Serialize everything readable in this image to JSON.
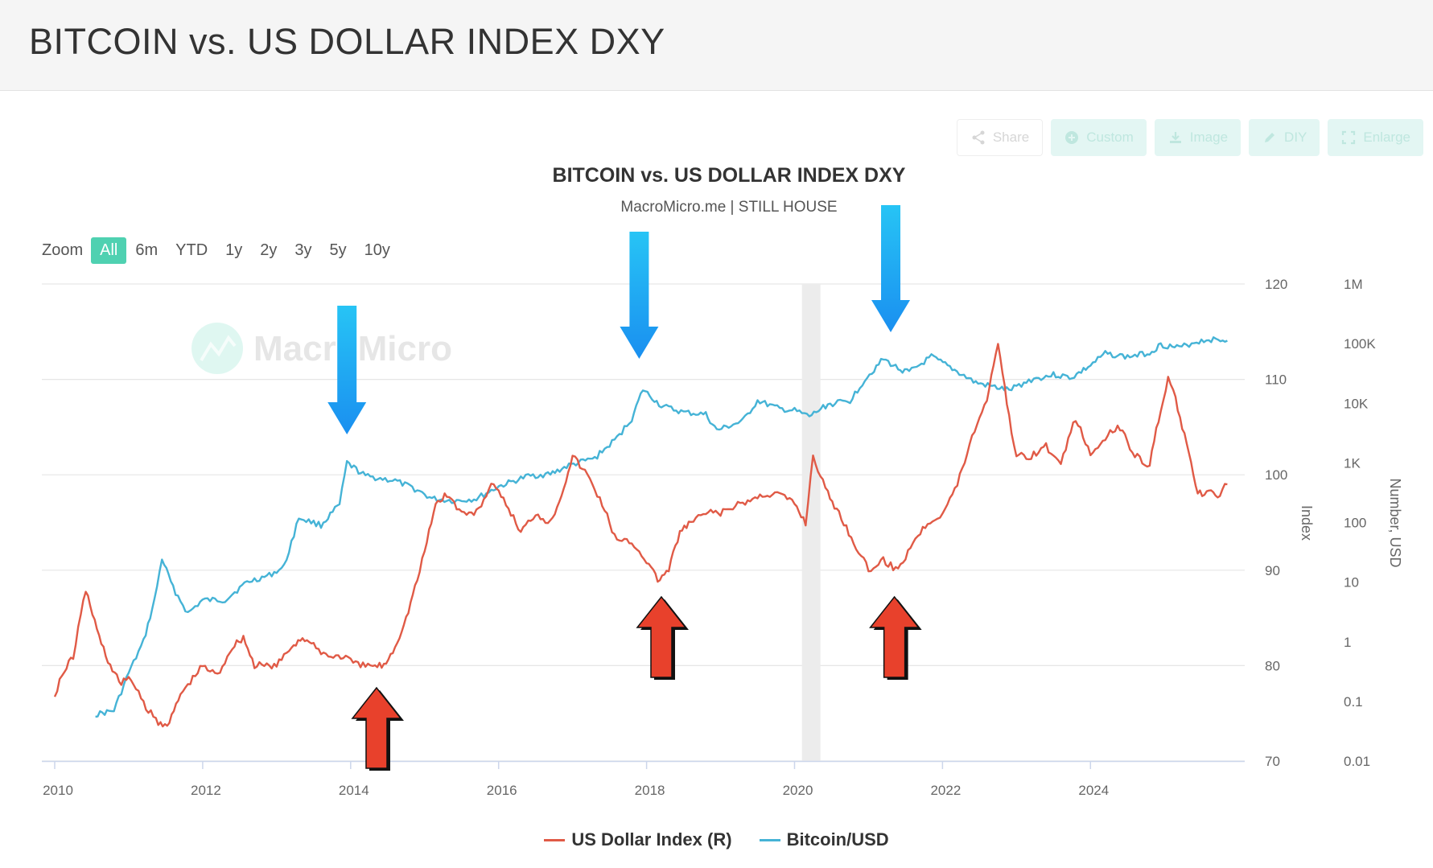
{
  "page": {
    "title": "BITCOIN vs. US DOLLAR INDEX DXY"
  },
  "toolbar": [
    {
      "id": "share",
      "label": "Share",
      "icon": "share-icon"
    },
    {
      "id": "custom",
      "label": "Custom",
      "icon": "plus-circle-icon"
    },
    {
      "id": "image",
      "label": "Image",
      "icon": "download-icon"
    },
    {
      "id": "diy",
      "label": "DIY",
      "icon": "pencil-icon"
    },
    {
      "id": "enlarge",
      "label": "Enlarge",
      "icon": "expand-icon"
    }
  ],
  "zoom": {
    "label": "Zoom",
    "options": [
      "All",
      "6m",
      "YTD",
      "1y",
      "2y",
      "3y",
      "5y",
      "10y"
    ],
    "selected": "All"
  },
  "watermark": "MacroMicro",
  "colors": {
    "dxy": "#e05a46",
    "btc": "#45b3d6",
    "accent": "#4fd1b1",
    "arrow_blue": "#1a8ff0",
    "arrow_red": "#e8412c",
    "grid": "#e6e6e6"
  },
  "chart_data": {
    "type": "line",
    "title": "BITCOIN vs. US DOLLAR INDEX DXY",
    "subtitle": "MacroMicro.me | STILL HOUSE",
    "xlabel": "",
    "x_ticks": [
      "2010",
      "2012",
      "2014",
      "2016",
      "2018",
      "2020",
      "2022",
      "2024"
    ],
    "xlim": [
      2010,
      2025.9
    ],
    "y_axes": [
      {
        "label": "Index",
        "ticks": [
          "70",
          "80",
          "90",
          "100",
          "110",
          "120"
        ],
        "ylim": [
          70,
          120
        ],
        "scale": "linear"
      },
      {
        "label": "Number, USD",
        "ticks": [
          "0.01",
          "0.1",
          "1",
          "10",
          "100",
          "1K",
          "10K",
          "100K",
          "1M"
        ],
        "ylim": [
          0.01,
          1000000
        ],
        "scale": "log"
      }
    ],
    "shaded_region": {
      "x": [
        2020.1,
        2020.35
      ]
    },
    "series": [
      {
        "name": "US Dollar Index (R)",
        "axis": 0,
        "points": [
          [
            2010.0,
            77
          ],
          [
            2010.1,
            79
          ],
          [
            2010.25,
            81
          ],
          [
            2010.42,
            88
          ],
          [
            2010.6,
            83
          ],
          [
            2010.75,
            80
          ],
          [
            2010.9,
            78
          ],
          [
            2011.0,
            79
          ],
          [
            2011.2,
            76
          ],
          [
            2011.4,
            74
          ],
          [
            2011.55,
            74
          ],
          [
            2011.7,
            77
          ],
          [
            2011.9,
            79
          ],
          [
            2012.0,
            80
          ],
          [
            2012.2,
            79
          ],
          [
            2012.4,
            82
          ],
          [
            2012.55,
            83
          ],
          [
            2012.7,
            80
          ],
          [
            2012.9,
            80
          ],
          [
            2013.0,
            80
          ],
          [
            2013.2,
            82
          ],
          [
            2013.35,
            83
          ],
          [
            2013.5,
            82
          ],
          [
            2013.7,
            81
          ],
          [
            2013.9,
            81
          ],
          [
            2014.1,
            80
          ],
          [
            2014.3,
            80
          ],
          [
            2014.45,
            80
          ],
          [
            2014.6,
            82
          ],
          [
            2014.75,
            85
          ],
          [
            2014.9,
            89
          ],
          [
            2015.0,
            92
          ],
          [
            2015.15,
            97
          ],
          [
            2015.3,
            98
          ],
          [
            2015.5,
            96
          ],
          [
            2015.7,
            96
          ],
          [
            2015.9,
            99
          ],
          [
            2016.1,
            97
          ],
          [
            2016.3,
            94
          ],
          [
            2016.5,
            96
          ],
          [
            2016.7,
            95
          ],
          [
            2016.85,
            98
          ],
          [
            2017.0,
            102
          ],
          [
            2017.2,
            100
          ],
          [
            2017.4,
            97
          ],
          [
            2017.6,
            93
          ],
          [
            2017.8,
            93
          ],
          [
            2018.0,
            91
          ],
          [
            2018.15,
            89
          ],
          [
            2018.3,
            90
          ],
          [
            2018.45,
            94
          ],
          [
            2018.6,
            95
          ],
          [
            2018.8,
            96
          ],
          [
            2019.0,
            96
          ],
          [
            2019.3,
            97
          ],
          [
            2019.6,
            98
          ],
          [
            2019.8,
            98
          ],
          [
            2020.0,
            97
          ],
          [
            2020.15,
            95
          ],
          [
            2020.25,
            102
          ],
          [
            2020.45,
            98
          ],
          [
            2020.6,
            96
          ],
          [
            2020.8,
            93
          ],
          [
            2021.0,
            90
          ],
          [
            2021.2,
            91
          ],
          [
            2021.4,
            90
          ],
          [
            2021.6,
            93
          ],
          [
            2021.8,
            95
          ],
          [
            2022.0,
            96
          ],
          [
            2022.2,
            99
          ],
          [
            2022.4,
            104
          ],
          [
            2022.6,
            108
          ],
          [
            2022.75,
            114
          ],
          [
            2022.9,
            106
          ],
          [
            2023.0,
            102
          ],
          [
            2023.2,
            102
          ],
          [
            2023.4,
            103
          ],
          [
            2023.6,
            101
          ],
          [
            2023.8,
            106
          ],
          [
            2024.0,
            102
          ],
          [
            2024.2,
            104
          ],
          [
            2024.4,
            105
          ],
          [
            2024.6,
            102
          ],
          [
            2024.8,
            101
          ],
          [
            2024.95,
            107
          ],
          [
            2025.05,
            110
          ],
          [
            2025.15,
            108
          ],
          [
            2025.3,
            103
          ],
          [
            2025.45,
            98
          ],
          [
            2025.6,
            98
          ],
          [
            2025.75,
            98
          ],
          [
            2025.85,
            99
          ]
        ]
      },
      {
        "name": "Bitcoin/USD",
        "axis": 1,
        "points": [
          [
            2010.55,
            0.06
          ],
          [
            2010.8,
            0.07
          ],
          [
            2011.0,
            0.3
          ],
          [
            2011.2,
            1
          ],
          [
            2011.35,
            5
          ],
          [
            2011.45,
            25
          ],
          [
            2011.6,
            8
          ],
          [
            2011.8,
            3
          ],
          [
            2012.0,
            5
          ],
          [
            2012.3,
            5
          ],
          [
            2012.6,
            10
          ],
          [
            2012.9,
            13
          ],
          [
            2013.1,
            18
          ],
          [
            2013.3,
            120
          ],
          [
            2013.6,
            90
          ],
          [
            2013.85,
            200
          ],
          [
            2013.95,
            1000
          ],
          [
            2014.2,
            600
          ],
          [
            2014.6,
            500
          ],
          [
            2014.9,
            350
          ],
          [
            2015.1,
            250
          ],
          [
            2015.4,
            230
          ],
          [
            2015.7,
            250
          ],
          [
            2016.0,
            400
          ],
          [
            2016.4,
            600
          ],
          [
            2016.7,
            650
          ],
          [
            2016.95,
            900
          ],
          [
            2017.3,
            1200
          ],
          [
            2017.6,
            2600
          ],
          [
            2017.8,
            5500
          ],
          [
            2017.95,
            17000
          ],
          [
            2018.2,
            9000
          ],
          [
            2018.5,
            7000
          ],
          [
            2018.8,
            6500
          ],
          [
            2018.95,
            3500
          ],
          [
            2019.3,
            5000
          ],
          [
            2019.5,
            11000
          ],
          [
            2019.8,
            8000
          ],
          [
            2020.0,
            7500
          ],
          [
            2020.2,
            6000
          ],
          [
            2020.45,
            9500
          ],
          [
            2020.75,
            11000
          ],
          [
            2020.95,
            25000
          ],
          [
            2021.2,
            55000
          ],
          [
            2021.4,
            38000
          ],
          [
            2021.55,
            33000
          ],
          [
            2021.85,
            60000
          ],
          [
            2022.1,
            40000
          ],
          [
            2022.45,
            22000
          ],
          [
            2022.9,
            16500
          ],
          [
            2023.2,
            25000
          ],
          [
            2023.5,
            30000
          ],
          [
            2023.75,
            27000
          ],
          [
            2024.0,
            43000
          ],
          [
            2024.2,
            68000
          ],
          [
            2024.5,
            60000
          ],
          [
            2024.8,
            70000
          ],
          [
            2024.95,
            96000
          ],
          [
            2025.2,
            85000
          ],
          [
            2025.4,
            105000
          ],
          [
            2025.6,
            118000
          ],
          [
            2025.85,
            112000
          ]
        ]
      }
    ],
    "legend": [
      "US Dollar Index (R)",
      "Bitcoin/USD"
    ],
    "legend_position": "bottom-center"
  }
}
